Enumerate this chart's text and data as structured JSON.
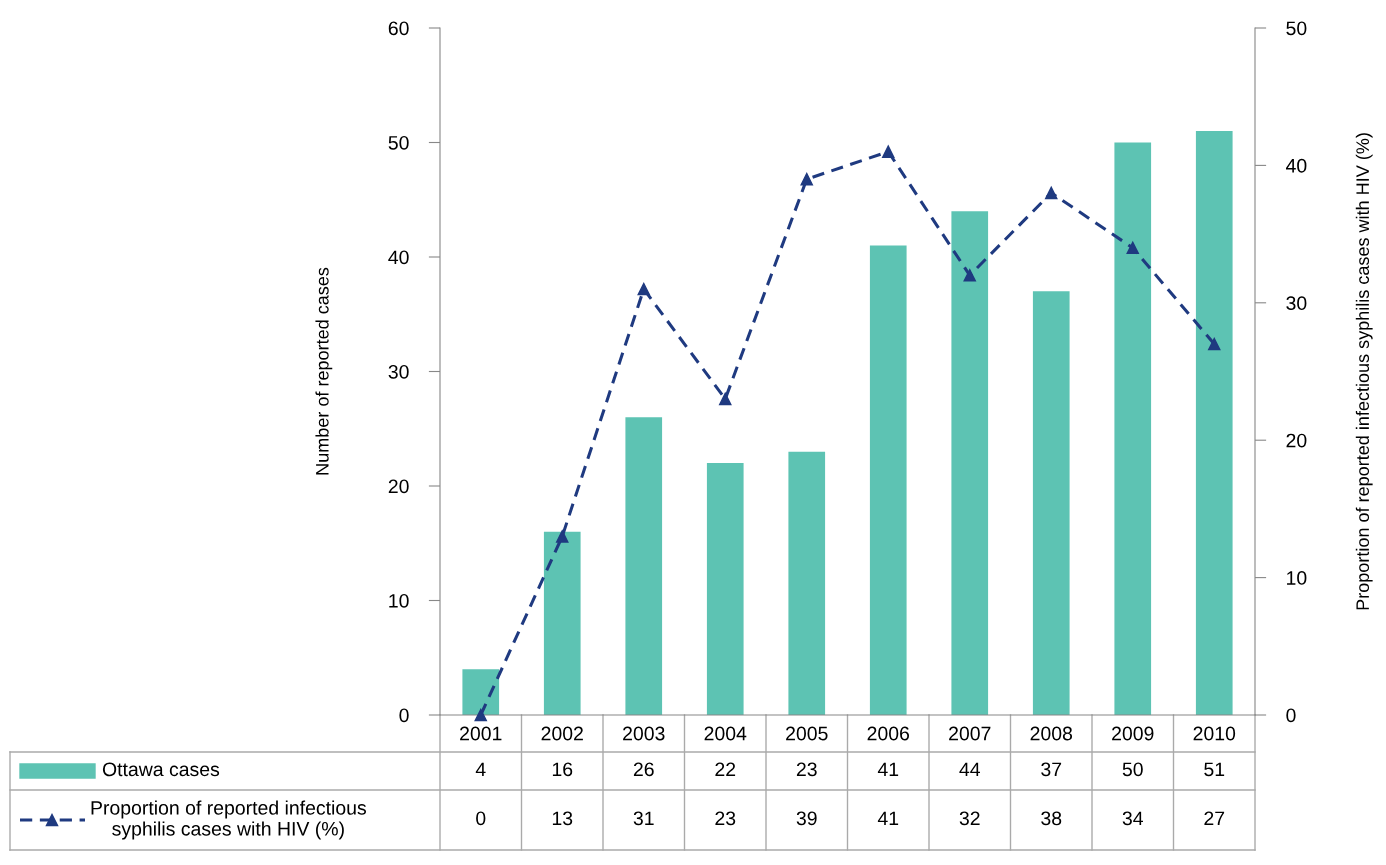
{
  "chart_data": {
    "type": "bar",
    "categories": [
      "2001",
      "2002",
      "2003",
      "2004",
      "2005",
      "2006",
      "2007",
      "2008",
      "2009",
      "2010"
    ],
    "series": [
      {
        "name": "Ottawa cases",
        "color": "#5dc3b3",
        "values": [
          4,
          16,
          26,
          22,
          23,
          41,
          44,
          37,
          50,
          51
        ]
      },
      {
        "name": "Proportion of reported infectious\nsyphilis cases with HIV (%)",
        "type": "line",
        "axis": "y2",
        "color": "#1f3a80",
        "marker": "triangle",
        "line_style": "dashed",
        "values": [
          0,
          13,
          31,
          23,
          39,
          41,
          32,
          38,
          34,
          27
        ]
      }
    ],
    "ylabel": "Number of reported cases",
    "y2label": "Proportion of reported infectious syphilis cases with HIV (%)",
    "ylim": [
      0,
      60
    ],
    "yticks": [
      0,
      10,
      20,
      30,
      40,
      50,
      60
    ],
    "y2lim": [
      0,
      50
    ],
    "y2ticks": [
      0,
      10,
      20,
      30,
      40,
      50
    ],
    "data_labels": true,
    "legend": "bottom",
    "grid": false
  }
}
